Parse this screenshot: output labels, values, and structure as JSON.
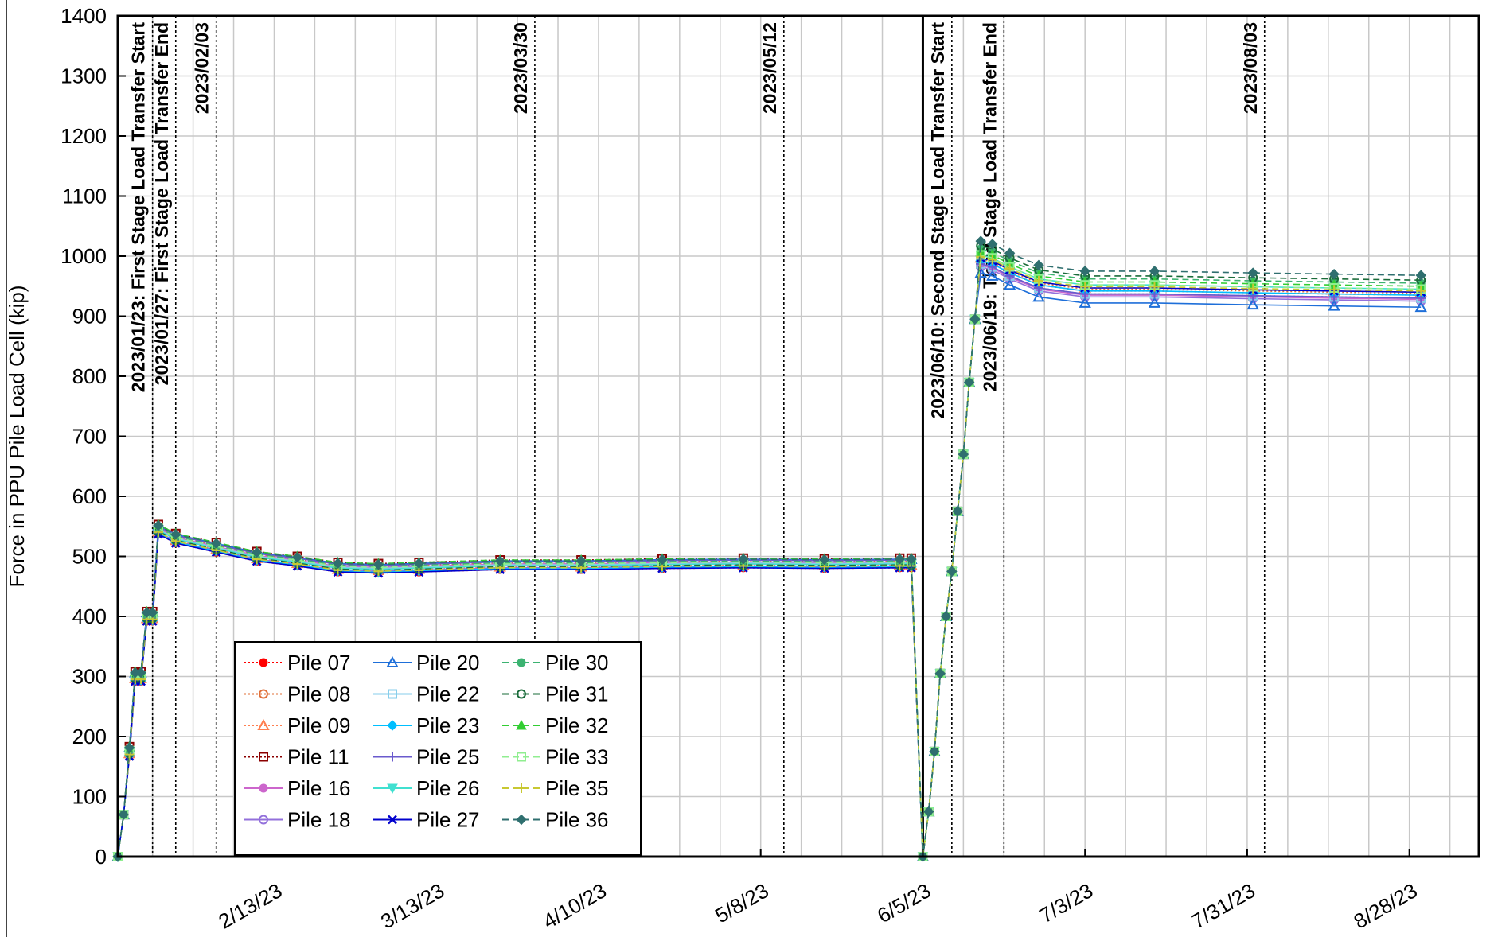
{
  "chart_data": {
    "type": "line",
    "ylabel": "Force in PPU Pile Load Cell (kip)",
    "xlabel": "",
    "ylim": [
      0,
      1400
    ],
    "yticks": [
      0,
      100,
      200,
      300,
      400,
      500,
      600,
      700,
      800,
      900,
      1000,
      1100,
      1200,
      1300,
      1400
    ],
    "xlim": [
      "2023-01-17",
      "2023-09-09"
    ],
    "xticks": [
      "2/13/23",
      "3/13/23",
      "4/10/23",
      "5/8/23",
      "6/5/23",
      "7/3/23",
      "7/31/23",
      "8/28/23"
    ],
    "xtick_dates": [
      "2023-02-13",
      "2023-03-13",
      "2023-04-10",
      "2023-05-08",
      "2023-06-05",
      "2023-07-03",
      "2023-07-31",
      "2023-08-28"
    ],
    "grid": true,
    "legend_position": "bottom-left",
    "event_markers": [
      {
        "date": "2023-01-23",
        "label": "2023/01/23: First Stage Load Transfer Start",
        "style": "dotted"
      },
      {
        "date": "2023-01-27",
        "label": "2023/01/27: First Stage Load Transfer End",
        "style": "dotted"
      },
      {
        "date": "2023-02-03",
        "label": "2023/02/03",
        "style": "dotted"
      },
      {
        "date": "2023-03-30",
        "label": "2023/03/30",
        "style": "dotted"
      },
      {
        "date": "2023-05-12",
        "label": "2023/05/12",
        "style": "dotted"
      },
      {
        "date": "2023-06-05",
        "label": "",
        "style": "solid"
      },
      {
        "date": "2023-06-10",
        "label": "2023/06/10: Second Stage Load Transfer Start",
        "style": "dotted"
      },
      {
        "date": "2023-06-19",
        "label": "2023/06/19: Third Stage Load Transfer End",
        "style": "dotted"
      },
      {
        "date": "2023-08-03",
        "label": "2023/08/03",
        "style": "dotted"
      }
    ],
    "series": [
      {
        "name": "Pile 07",
        "color": "#ff0000",
        "dash": "dotted",
        "marker": "circle-filled",
        "final": 935
      },
      {
        "name": "Pile 08",
        "color": "#e0703a",
        "dash": "dotted",
        "marker": "circle-open",
        "final": 938
      },
      {
        "name": "Pile 09",
        "color": "#ff7f50",
        "dash": "dotted",
        "marker": "triangle-open",
        "final": 940
      },
      {
        "name": "Pile 11",
        "color": "#8b0000",
        "dash": "dotted",
        "marker": "square-open",
        "final": 930
      },
      {
        "name": "Pile 16",
        "color": "#cc66cc",
        "dash": "solid",
        "marker": "circle-filled",
        "final": 928
      },
      {
        "name": "Pile 18",
        "color": "#9370db",
        "dash": "solid",
        "marker": "circle-open",
        "final": 925
      },
      {
        "name": "Pile 20",
        "color": "#1e6fd9",
        "dash": "solid",
        "marker": "triangle-open",
        "final": 915
      },
      {
        "name": "Pile 22",
        "color": "#87ceeb",
        "dash": "solid",
        "marker": "square-open",
        "final": 930
      },
      {
        "name": "Pile 23",
        "color": "#00bfff",
        "dash": "solid",
        "marker": "diamond-filled",
        "final": 935
      },
      {
        "name": "Pile 25",
        "color": "#6a5acd",
        "dash": "solid",
        "marker": "plus",
        "final": 930
      },
      {
        "name": "Pile 26",
        "color": "#40e0d0",
        "dash": "solid",
        "marker": "triangle-down",
        "final": 945
      },
      {
        "name": "Pile 27",
        "color": "#0000cd",
        "dash": "solid",
        "marker": "x",
        "final": 940
      },
      {
        "name": "Pile 30",
        "color": "#3cb371",
        "dash": "dashed",
        "marker": "circle-filled",
        "final": 955
      },
      {
        "name": "Pile 31",
        "color": "#1a6b3a",
        "dash": "dashed",
        "marker": "circle-open",
        "final": 960
      },
      {
        "name": "Pile 32",
        "color": "#32cd32",
        "dash": "dashed",
        "marker": "triangle-filled",
        "final": 950
      },
      {
        "name": "Pile 33",
        "color": "#90ee90",
        "dash": "dashed",
        "marker": "square-open",
        "final": 945
      },
      {
        "name": "Pile 35",
        "color": "#c8c832",
        "dash": "dashed",
        "marker": "plus",
        "final": 942
      },
      {
        "name": "Pile 36",
        "color": "#2f6f6f",
        "dash": "dashed",
        "marker": "diamond-filled",
        "final": 968
      }
    ],
    "base_profile": [
      [
        "2023-01-17",
        0
      ],
      [
        "2023-01-18",
        70
      ],
      [
        "2023-01-19",
        175
      ],
      [
        "2023-01-20",
        300
      ],
      [
        "2023-01-21",
        300
      ],
      [
        "2023-01-22",
        400
      ],
      [
        "2023-01-23",
        400
      ],
      [
        "2023-01-24",
        545
      ],
      [
        "2023-01-27",
        530
      ],
      [
        "2023-02-03",
        515
      ],
      [
        "2023-02-10",
        500
      ],
      [
        "2023-02-17",
        492
      ],
      [
        "2023-02-24",
        482
      ],
      [
        "2023-03-03",
        480
      ],
      [
        "2023-03-10",
        482
      ],
      [
        "2023-03-24",
        486
      ],
      [
        "2023-04-07",
        486
      ],
      [
        "2023-04-21",
        488
      ],
      [
        "2023-05-05",
        489
      ],
      [
        "2023-05-19",
        488
      ],
      [
        "2023-06-01",
        489
      ],
      [
        "2023-06-03",
        489
      ],
      [
        "2023-06-05",
        0
      ],
      [
        "2023-06-06",
        75
      ],
      [
        "2023-06-07",
        175
      ],
      [
        "2023-06-08",
        305
      ],
      [
        "2023-06-09",
        400
      ],
      [
        "2023-06-10",
        475
      ],
      [
        "2023-06-11",
        575
      ],
      [
        "2023-06-12",
        670
      ],
      [
        "2023-06-13",
        790
      ],
      [
        "2023-06-14",
        895
      ],
      [
        "2023-06-15",
        995
      ],
      [
        "2023-06-17",
        990
      ],
      [
        "2023-06-20",
        975
      ],
      [
        "2023-06-25",
        955
      ],
      [
        "2023-07-03",
        945
      ],
      [
        "2023-07-15",
        945
      ],
      [
        "2023-08-01",
        942
      ],
      [
        "2023-08-15",
        940
      ],
      [
        "2023-08-30",
        938
      ]
    ]
  }
}
